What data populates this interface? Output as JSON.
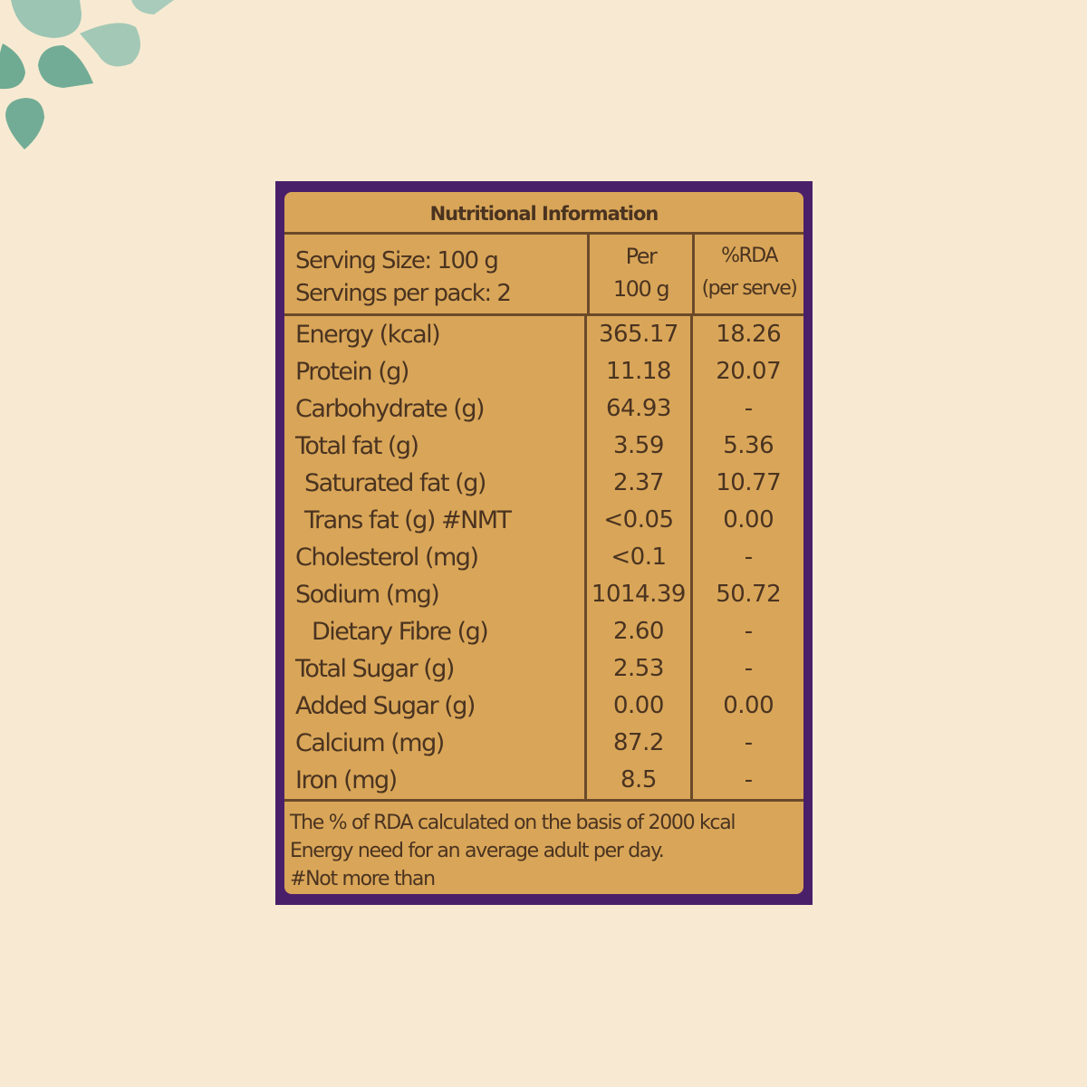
{
  "label": {
    "title": "Nutritional Information",
    "serving_size": "Serving Size: 100 g",
    "servings_per_pack": "Servings per pack: 2",
    "col_per_line1": "Per",
    "col_per_line2": "100 g",
    "col_rda_line1": "%RDA",
    "col_rda_line2": "(per serve)",
    "rows": [
      {
        "name": "Energy (kcal)",
        "per100": "365.17",
        "rda": "18.26"
      },
      {
        "name": "Protein (g)",
        "per100": "11.18",
        "rda": "20.07"
      },
      {
        "name": "Carbohydrate (g)",
        "per100": "64.93",
        "rda": "-"
      },
      {
        "name": "Total fat (g)",
        "per100": "3.59",
        "rda": "5.36"
      },
      {
        "name": "Saturated fat (g)",
        "per100": "2.37",
        "rda": "10.77"
      },
      {
        "name": "Trans fat (g) #NMT",
        "per100": "<0.05",
        "rda": "0.00"
      },
      {
        "name": "Cholesterol (mg)",
        "per100": "<0.1",
        "rda": "-"
      },
      {
        "name": "Sodium (mg)",
        "per100": "1014.39",
        "rda": "50.72"
      },
      {
        "name": "Dietary Fibre (g)",
        "per100": "2.60",
        "rda": "-"
      },
      {
        "name": "Total Sugar (g)",
        "per100": "2.53",
        "rda": "-"
      },
      {
        "name": "Added Sugar (g)",
        "per100": "0.00",
        "rda": "0.00"
      },
      {
        "name": "Calcium (mg)",
        "per100": "87.2",
        "rda": "-"
      },
      {
        "name": "Iron (mg)",
        "per100": "8.5",
        "rda": "-"
      }
    ],
    "footnote_1": "The % of RDA calculated on the basis of 2000 kcal",
    "footnote_2": "Energy need for an average adult per day.",
    "footnote_3": "#Not more than"
  },
  "colors": {
    "background": "#f8ead2",
    "frame": "#4a1f6a",
    "label": "#d9a659",
    "text": "#4a3320",
    "leaf": "#6faa93"
  }
}
